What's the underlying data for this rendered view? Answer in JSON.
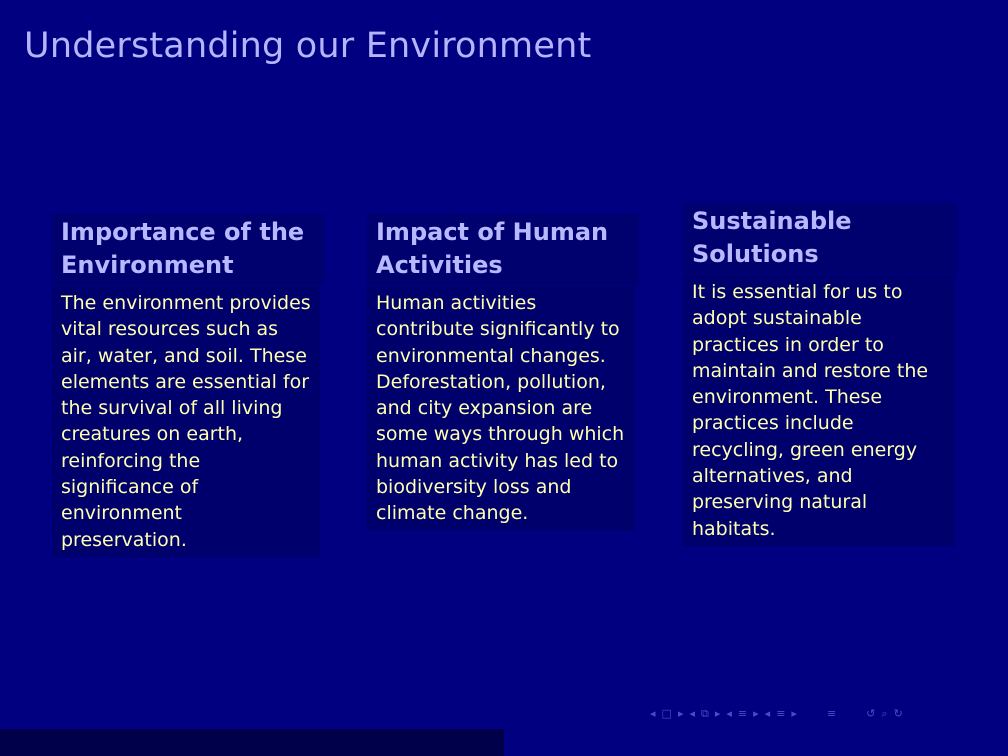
{
  "slide": {
    "title": "Understanding our Environment"
  },
  "blocks": [
    {
      "title": "Importance of the Environment",
      "body": "The environment provides vital resources such as air, water, and soil. These elements are essential for the survival of all living creatures on earth, reinforcing the significance of environment preservation."
    },
    {
      "title": "Impact of Human Activities",
      "body": "Human activities contribute significantly to environmental changes. Deforestation, pollution, and city expansion are some ways through which human activity has led to biodiversity loss and climate change."
    },
    {
      "title": "Sustainable Solutions",
      "body": "It is essential for us to adopt sustainable practices in order to maintain and restore the environment. These practices include recycling, green energy alternatives, and preserving natural habitats."
    }
  ],
  "navigation": {
    "icons": [
      "prev-frame-icon",
      "frame-icon",
      "next-frame-icon",
      "prev-subsection-icon",
      "subsection-icon",
      "next-subsection-icon",
      "prev-section-icon",
      "section-icon",
      "next-section-icon",
      "prev-document-icon",
      "document-icon",
      "next-document-icon",
      "toc-icon",
      "back-icon",
      "search-icon",
      "forward-icon"
    ]
  },
  "colors": {
    "background": "#000080",
    "title": "#b4b4ff",
    "block_title_bg": "#00006f",
    "block_body_bg": "#00006c",
    "block_body_text": "#ffffb0",
    "footer_left": "#00004a"
  }
}
